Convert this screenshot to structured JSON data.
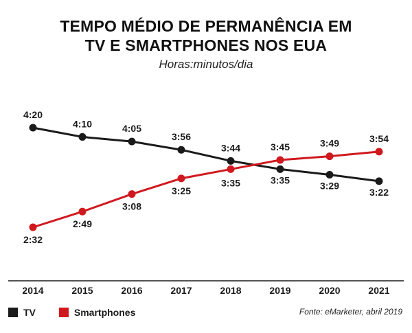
{
  "chart_data": {
    "type": "line",
    "title": "TEMPO MÉDIO DE PERMANÊNCIA EM",
    "title_line2": "TV E SMARTPHONES NOS EUA",
    "subtitle": "Horas:minutos/dia",
    "x": [
      "2014",
      "2015",
      "2016",
      "2017",
      "2018",
      "2019",
      "2020",
      "2021"
    ],
    "series": [
      {
        "name": "TV",
        "color": "#1a1a1a",
        "values": [
          260,
          250,
          245,
          236,
          224,
          215,
          209,
          202
        ],
        "labels": [
          "4:20",
          "4:10",
          "4:05",
          "3:56",
          "3:44",
          "3:35",
          "3:29",
          "3:22"
        ]
      },
      {
        "name": "Smartphones",
        "color": "#d0191f",
        "values": [
          152,
          169,
          188,
          205,
          215,
          225,
          229,
          234
        ],
        "labels": [
          "2:32",
          "2:49",
          "3:08",
          "3:25",
          "3:35",
          "3:45",
          "3:49",
          "3:54"
        ]
      }
    ],
    "ylim": [
      140,
      270
    ],
    "grid": false,
    "legend": "bottom-left",
    "source": "Fonte: eMarketer, abril 2019"
  }
}
